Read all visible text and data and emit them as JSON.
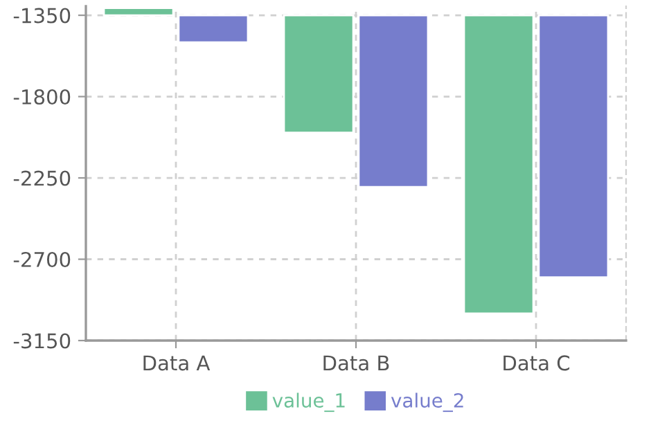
{
  "chart_data": {
    "type": "bar",
    "categories": [
      "Data A",
      "Data B",
      "Data C"
    ],
    "series": [
      {
        "name": "value_1",
        "color": "#6cc197",
        "base": [
          -1350,
          -1350,
          -1350
        ],
        "values": [
          40,
          -650,
          -1650
        ]
      },
      {
        "name": "value_2",
        "color": "#767dcc",
        "base": [
          -1350,
          -1350,
          -1350
        ],
        "values": [
          -150,
          -950,
          -1450
        ]
      }
    ],
    "ylim": [
      -3150,
      -1300
    ],
    "yticks": [
      -3150,
      -2700,
      -2250,
      -1800,
      -1350
    ],
    "grid": true,
    "legend": "bottom"
  }
}
